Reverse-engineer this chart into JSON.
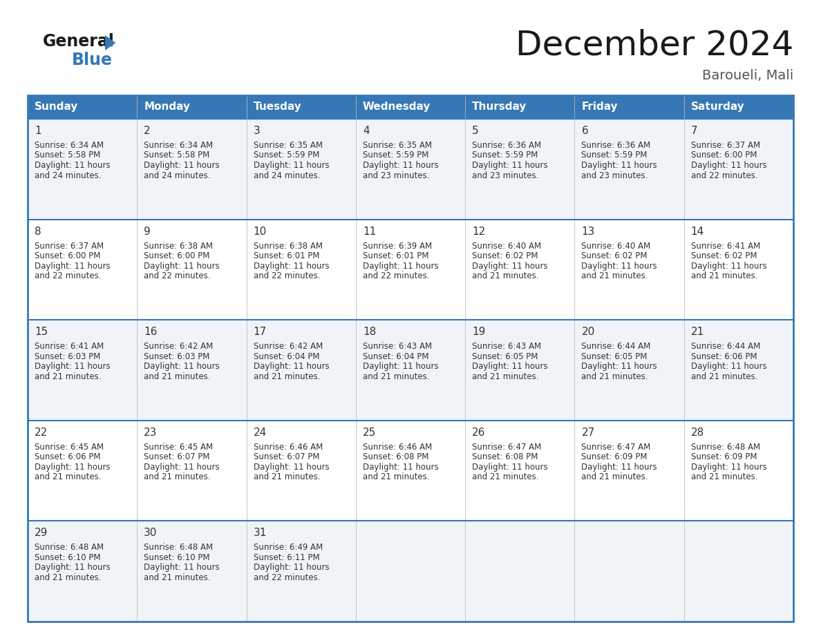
{
  "title": "December 2024",
  "subtitle": "Baroueli, Mali",
  "header_color": "#3578b5",
  "header_text_color": "#ffffff",
  "cell_bg_odd": "#f0f4f8",
  "cell_bg_even": "#ffffff",
  "border_color": "#3578b5",
  "row_line_color": "#3578b5",
  "text_color": "#333333",
  "days_of_week": [
    "Sunday",
    "Monday",
    "Tuesday",
    "Wednesday",
    "Thursday",
    "Friday",
    "Saturday"
  ],
  "weeks": [
    [
      {
        "day": 1,
        "sunrise": "6:34 AM",
        "sunset": "5:58 PM",
        "dl1": "Daylight: 11 hours",
        "dl2": "and 24 minutes."
      },
      {
        "day": 2,
        "sunrise": "6:34 AM",
        "sunset": "5:58 PM",
        "dl1": "Daylight: 11 hours",
        "dl2": "and 24 minutes."
      },
      {
        "day": 3,
        "sunrise": "6:35 AM",
        "sunset": "5:59 PM",
        "dl1": "Daylight: 11 hours",
        "dl2": "and 24 minutes."
      },
      {
        "day": 4,
        "sunrise": "6:35 AM",
        "sunset": "5:59 PM",
        "dl1": "Daylight: 11 hours",
        "dl2": "and 23 minutes."
      },
      {
        "day": 5,
        "sunrise": "6:36 AM",
        "sunset": "5:59 PM",
        "dl1": "Daylight: 11 hours",
        "dl2": "and 23 minutes."
      },
      {
        "day": 6,
        "sunrise": "6:36 AM",
        "sunset": "5:59 PM",
        "dl1": "Daylight: 11 hours",
        "dl2": "and 23 minutes."
      },
      {
        "day": 7,
        "sunrise": "6:37 AM",
        "sunset": "6:00 PM",
        "dl1": "Daylight: 11 hours",
        "dl2": "and 22 minutes."
      }
    ],
    [
      {
        "day": 8,
        "sunrise": "6:37 AM",
        "sunset": "6:00 PM",
        "dl1": "Daylight: 11 hours",
        "dl2": "and 22 minutes."
      },
      {
        "day": 9,
        "sunrise": "6:38 AM",
        "sunset": "6:00 PM",
        "dl1": "Daylight: 11 hours",
        "dl2": "and 22 minutes."
      },
      {
        "day": 10,
        "sunrise": "6:38 AM",
        "sunset": "6:01 PM",
        "dl1": "Daylight: 11 hours",
        "dl2": "and 22 minutes."
      },
      {
        "day": 11,
        "sunrise": "6:39 AM",
        "sunset": "6:01 PM",
        "dl1": "Daylight: 11 hours",
        "dl2": "and 22 minutes."
      },
      {
        "day": 12,
        "sunrise": "6:40 AM",
        "sunset": "6:02 PM",
        "dl1": "Daylight: 11 hours",
        "dl2": "and 21 minutes."
      },
      {
        "day": 13,
        "sunrise": "6:40 AM",
        "sunset": "6:02 PM",
        "dl1": "Daylight: 11 hours",
        "dl2": "and 21 minutes."
      },
      {
        "day": 14,
        "sunrise": "6:41 AM",
        "sunset": "6:02 PM",
        "dl1": "Daylight: 11 hours",
        "dl2": "and 21 minutes."
      }
    ],
    [
      {
        "day": 15,
        "sunrise": "6:41 AM",
        "sunset": "6:03 PM",
        "dl1": "Daylight: 11 hours",
        "dl2": "and 21 minutes."
      },
      {
        "day": 16,
        "sunrise": "6:42 AM",
        "sunset": "6:03 PM",
        "dl1": "Daylight: 11 hours",
        "dl2": "and 21 minutes."
      },
      {
        "day": 17,
        "sunrise": "6:42 AM",
        "sunset": "6:04 PM",
        "dl1": "Daylight: 11 hours",
        "dl2": "and 21 minutes."
      },
      {
        "day": 18,
        "sunrise": "6:43 AM",
        "sunset": "6:04 PM",
        "dl1": "Daylight: 11 hours",
        "dl2": "and 21 minutes."
      },
      {
        "day": 19,
        "sunrise": "6:43 AM",
        "sunset": "6:05 PM",
        "dl1": "Daylight: 11 hours",
        "dl2": "and 21 minutes."
      },
      {
        "day": 20,
        "sunrise": "6:44 AM",
        "sunset": "6:05 PM",
        "dl1": "Daylight: 11 hours",
        "dl2": "and 21 minutes."
      },
      {
        "day": 21,
        "sunrise": "6:44 AM",
        "sunset": "6:06 PM",
        "dl1": "Daylight: 11 hours",
        "dl2": "and 21 minutes."
      }
    ],
    [
      {
        "day": 22,
        "sunrise": "6:45 AM",
        "sunset": "6:06 PM",
        "dl1": "Daylight: 11 hours",
        "dl2": "and 21 minutes."
      },
      {
        "day": 23,
        "sunrise": "6:45 AM",
        "sunset": "6:07 PM",
        "dl1": "Daylight: 11 hours",
        "dl2": "and 21 minutes."
      },
      {
        "day": 24,
        "sunrise": "6:46 AM",
        "sunset": "6:07 PM",
        "dl1": "Daylight: 11 hours",
        "dl2": "and 21 minutes."
      },
      {
        "day": 25,
        "sunrise": "6:46 AM",
        "sunset": "6:08 PM",
        "dl1": "Daylight: 11 hours",
        "dl2": "and 21 minutes."
      },
      {
        "day": 26,
        "sunrise": "6:47 AM",
        "sunset": "6:08 PM",
        "dl1": "Daylight: 11 hours",
        "dl2": "and 21 minutes."
      },
      {
        "day": 27,
        "sunrise": "6:47 AM",
        "sunset": "6:09 PM",
        "dl1": "Daylight: 11 hours",
        "dl2": "and 21 minutes."
      },
      {
        "day": 28,
        "sunrise": "6:48 AM",
        "sunset": "6:09 PM",
        "dl1": "Daylight: 11 hours",
        "dl2": "and 21 minutes."
      }
    ],
    [
      {
        "day": 29,
        "sunrise": "6:48 AM",
        "sunset": "6:10 PM",
        "dl1": "Daylight: 11 hours",
        "dl2": "and 21 minutes."
      },
      {
        "day": 30,
        "sunrise": "6:48 AM",
        "sunset": "6:10 PM",
        "dl1": "Daylight: 11 hours",
        "dl2": "and 21 minutes."
      },
      {
        "day": 31,
        "sunrise": "6:49 AM",
        "sunset": "6:11 PM",
        "dl1": "Daylight: 11 hours",
        "dl2": "and 22 minutes."
      },
      null,
      null,
      null,
      null
    ]
  ]
}
